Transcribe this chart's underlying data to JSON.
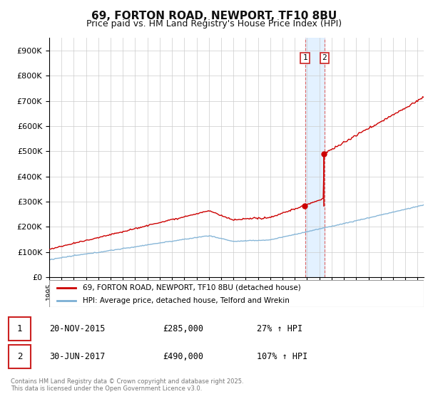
{
  "title": "69, FORTON ROAD, NEWPORT, TF10 8BU",
  "subtitle": "Price paid vs. HM Land Registry's House Price Index (HPI)",
  "red_label": "69, FORTON ROAD, NEWPORT, TF10 8BU (detached house)",
  "blue_label": "HPI: Average price, detached house, Telford and Wrekin",
  "transaction1_date": "20-NOV-2015",
  "transaction1_price": 285000,
  "transaction1_hpi": "27% ↑ HPI",
  "transaction2_date": "30-JUN-2017",
  "transaction2_price": 490000,
  "transaction2_hpi": "107% ↑ HPI",
  "footer": "Contains HM Land Registry data © Crown copyright and database right 2025.\nThis data is licensed under the Open Government Licence v3.0.",
  "red_color": "#cc0000",
  "blue_color": "#7bafd4",
  "shade_color": "#ddeeff",
  "bg_color": "#ffffff",
  "grid_color": "#cccccc",
  "year_start": 1995,
  "year_end": 2025
}
